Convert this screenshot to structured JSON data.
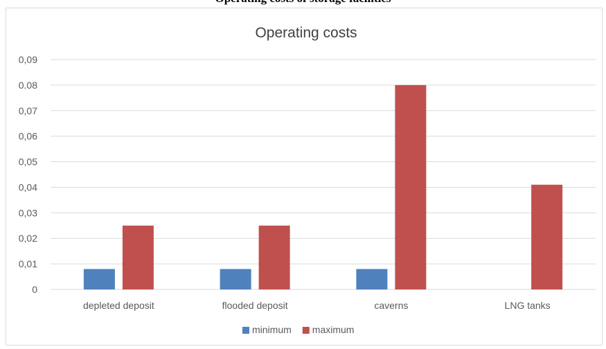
{
  "header": {
    "caption": "Operating costs of storage facilities"
  },
  "colors": {
    "minimum": "#4f81bd",
    "maximum": "#c0504d",
    "grid": "#d9d9d9",
    "text": "#595959"
  },
  "chart_data": {
    "type": "bar",
    "title": "Operating costs",
    "xlabel": "",
    "ylabel": "",
    "categories": [
      "depleted deposit",
      "flooded deposit",
      "caverns",
      "LNG tanks"
    ],
    "series": [
      {
        "name": "minimum",
        "values": [
          0.008,
          0.008,
          0.008,
          0
        ]
      },
      {
        "name": "maximum",
        "values": [
          0.025,
          0.025,
          0.08,
          0.041
        ]
      }
    ],
    "ylim": [
      0,
      0.09
    ],
    "yticks": [
      "0",
      "0,01",
      "0,02",
      "0,03",
      "0,04",
      "0,05",
      "0,06",
      "0,07",
      "0.08",
      "0,09"
    ],
    "grid": true,
    "legend": "bottom"
  }
}
